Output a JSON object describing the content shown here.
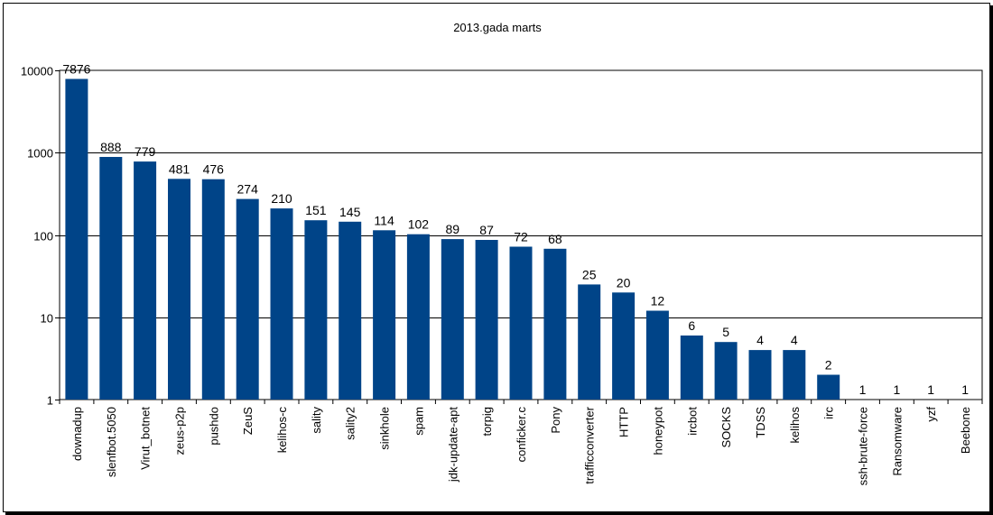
{
  "chart_data": {
    "type": "bar",
    "title": "2013.gada marts",
    "xlabel": "",
    "ylabel": "",
    "y_scale": "log",
    "ylim": [
      1,
      10000
    ],
    "y_ticks": [
      "1",
      "10",
      "100",
      "1000",
      "10000"
    ],
    "grid": true,
    "bar_color": "#004488",
    "categories": [
      "downadup",
      "slenfbot.5050",
      "Virut_botnet",
      "zeus-p2p",
      "pushdo",
      "ZeuS",
      "kelihos-c",
      "sality",
      "sality2",
      "sinkhole",
      "spam",
      "jdk-update-apt",
      "torpig",
      "conficker.c",
      "Pony",
      "trafficconverter",
      "HTTP",
      "honeypot",
      "ircbot",
      "SOCKS",
      "TDSS",
      "kelihos",
      "irc",
      "ssh-brute-force",
      "Ransomware",
      "yzf",
      "Beebone"
    ],
    "values": [
      7876,
      888,
      779,
      481,
      476,
      274,
      210,
      151,
      145,
      114,
      102,
      89,
      87,
      72,
      68,
      25,
      20,
      12,
      6,
      5,
      4,
      4,
      2,
      1,
      1,
      1,
      1
    ],
    "value_labels": [
      "7876",
      "888",
      "779",
      "481",
      "476",
      "274",
      "210",
      "151",
      "145",
      "114",
      "102",
      "89",
      "87",
      "72",
      "68",
      "25",
      "20",
      "12",
      "6",
      "5",
      "4",
      "4",
      "2",
      "1",
      "1",
      "1",
      "1"
    ]
  }
}
